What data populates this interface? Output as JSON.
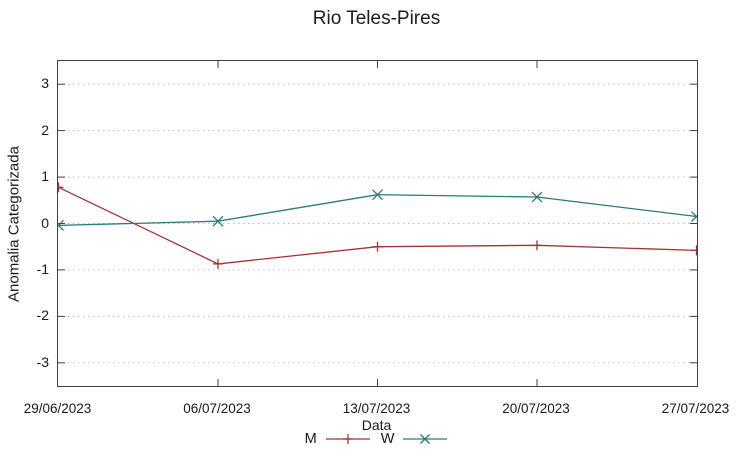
{
  "title": "Rio Teles-Pires",
  "chart_data": {
    "type": "line",
    "title": "Rio Teles-Pires",
    "xlabel": "Data",
    "ylabel": "Anomalia Categorizada",
    "x": [
      "29/06/2023",
      "06/07/2023",
      "13/07/2023",
      "20/07/2023",
      "27/07/2023"
    ],
    "series": [
      {
        "name": "M",
        "color": "#a83232",
        "marker": "plus",
        "values": [
          0.78,
          -0.87,
          -0.5,
          -0.47,
          -0.58
        ]
      },
      {
        "name": "W",
        "color": "#2b7b77",
        "marker": "cross",
        "values": [
          -0.04,
          0.05,
          0.62,
          0.57,
          0.15
        ]
      }
    ],
    "ylim": [
      -3.5,
      3.5
    ],
    "yticks": [
      -3,
      -2,
      -1,
      0,
      1,
      2,
      3
    ],
    "grid": "horizontal-dotted",
    "legend_position": "bottom-center",
    "colors": {
      "axis": "#404040",
      "gridline": "#bdbdbd",
      "text": "#1a1a1a"
    }
  }
}
